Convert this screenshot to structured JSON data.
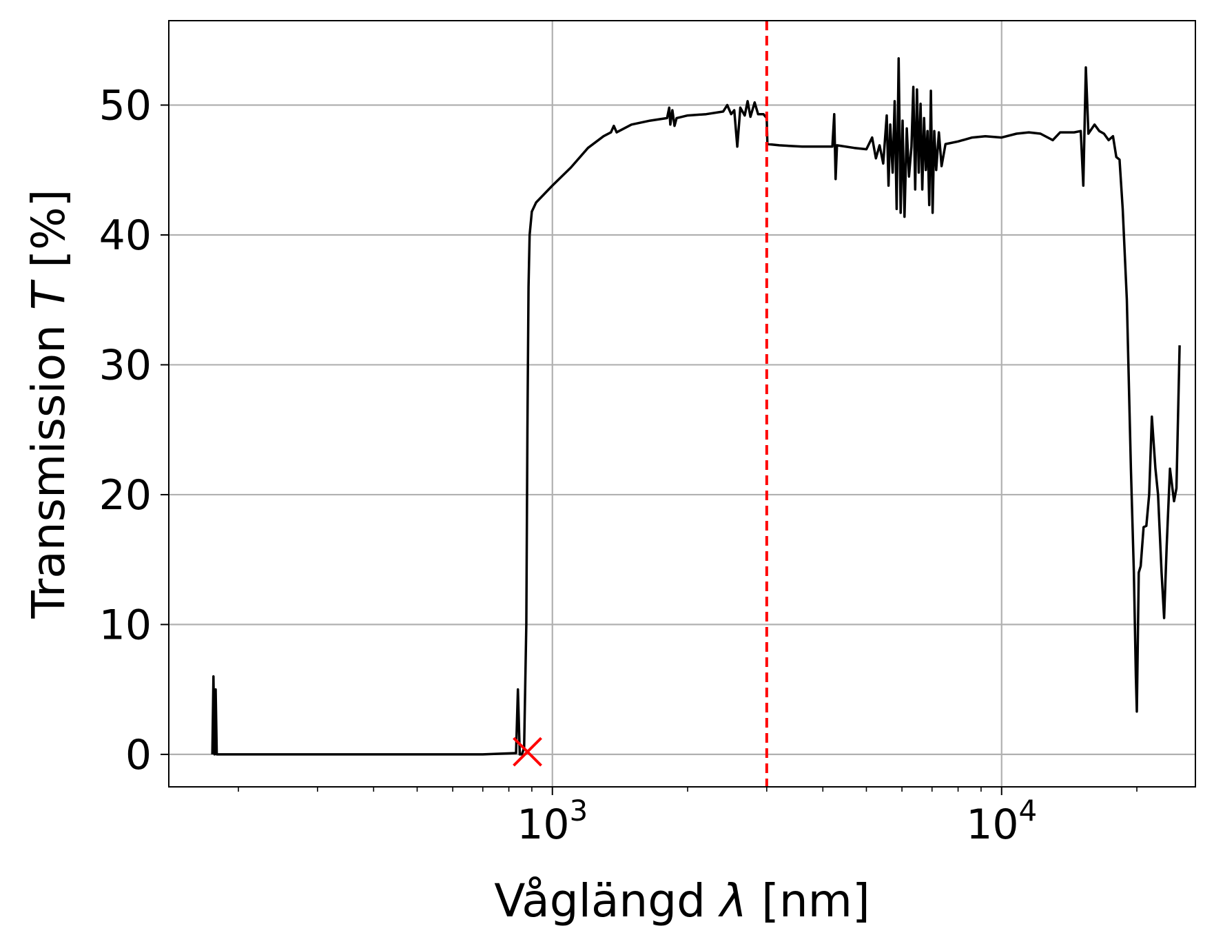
{
  "chart_data": {
    "type": "line",
    "xscale": "log",
    "xlim": [
      140,
      27000
    ],
    "ylim": [
      -2.5,
      56.5
    ],
    "grid": true,
    "xlabel": {
      "pre": "Våglängd ",
      "sym": "λ",
      "post": " [nm]"
    },
    "ylabel": {
      "pre": "Transmission ",
      "sym": "T",
      "post": " [%]"
    },
    "xticks": [
      {
        "value": 1000,
        "base": "10",
        "exp": "3"
      },
      {
        "value": 10000,
        "base": "10",
        "exp": "4"
      }
    ],
    "yticks": [
      0,
      10,
      20,
      30,
      40,
      50
    ],
    "colors": {
      "line": "#000000",
      "marker": "#ff0000",
      "vline": "#ff0000",
      "grid": "#b0b0b0"
    },
    "series": [
      {
        "color": "#000000",
        "points": [
          [
            175,
            0
          ],
          [
            176,
            6
          ],
          [
            177,
            0
          ],
          [
            178,
            5
          ],
          [
            179,
            0
          ],
          [
            300,
            0
          ],
          [
            500,
            0
          ],
          [
            700,
            0
          ],
          [
            830,
            0.1
          ],
          [
            838,
            5
          ],
          [
            846,
            0
          ],
          [
            855,
            0
          ],
          [
            865,
            0.5
          ],
          [
            875,
            10
          ],
          [
            880,
            25
          ],
          [
            885,
            36
          ],
          [
            890,
            40
          ],
          [
            900,
            41.8
          ],
          [
            920,
            42.5
          ],
          [
            1000,
            43.8
          ],
          [
            1100,
            45.2
          ],
          [
            1200,
            46.7
          ],
          [
            1300,
            47.6
          ],
          [
            1350,
            47.9
          ],
          [
            1370,
            48.4
          ],
          [
            1390,
            47.9
          ],
          [
            1500,
            48.5
          ],
          [
            1650,
            48.8
          ],
          [
            1800,
            49.0
          ],
          [
            1820,
            49.8
          ],
          [
            1830,
            48.5
          ],
          [
            1850,
            49.6
          ],
          [
            1870,
            48.4
          ],
          [
            1890,
            49.0
          ],
          [
            2000,
            49.2
          ],
          [
            2200,
            49.3
          ],
          [
            2400,
            49.5
          ],
          [
            2450,
            50.0
          ],
          [
            2500,
            49.3
          ],
          [
            2540,
            49.6
          ],
          [
            2580,
            46.8
          ],
          [
            2620,
            49.8
          ],
          [
            2680,
            49.2
          ],
          [
            2720,
            50.3
          ],
          [
            2760,
            49.1
          ],
          [
            2820,
            50.2
          ],
          [
            2870,
            49.3
          ],
          [
            2950,
            49.3
          ],
          [
            3000,
            49.0
          ],
          [
            3010,
            47.0
          ],
          [
            3200,
            46.9
          ],
          [
            3600,
            46.8
          ],
          [
            4000,
            46.8
          ],
          [
            4200,
            46.8
          ],
          [
            4240,
            49.3
          ],
          [
            4270,
            44.3
          ],
          [
            4300,
            46.9
          ],
          [
            4700,
            46.7
          ],
          [
            5000,
            46.6
          ],
          [
            5150,
            47.5
          ],
          [
            5250,
            45.9
          ],
          [
            5350,
            46.9
          ],
          [
            5450,
            45.5
          ],
          [
            5550,
            49.2
          ],
          [
            5600,
            43.8
          ],
          [
            5650,
            48.5
          ],
          [
            5720,
            44.8
          ],
          [
            5780,
            50.3
          ],
          [
            5840,
            42.0
          ],
          [
            5900,
            53.6
          ],
          [
            5960,
            41.7
          ],
          [
            6020,
            48.8
          ],
          [
            6080,
            41.4
          ],
          [
            6150,
            48.2
          ],
          [
            6220,
            44.5
          ],
          [
            6300,
            46.8
          ],
          [
            6360,
            51.4
          ],
          [
            6420,
            43.5
          ],
          [
            6480,
            51.2
          ],
          [
            6540,
            44.8
          ],
          [
            6600,
            50.1
          ],
          [
            6660,
            43.5
          ],
          [
            6720,
            49.0
          ],
          [
            6780,
            45.0
          ],
          [
            6840,
            48.0
          ],
          [
            6900,
            42.3
          ],
          [
            6960,
            51.1
          ],
          [
            7020,
            41.7
          ],
          [
            7080,
            48.0
          ],
          [
            7150,
            45.0
          ],
          [
            7250,
            47.9
          ],
          [
            7350,
            45.3
          ],
          [
            7500,
            47.0
          ],
          [
            8000,
            47.2
          ],
          [
            8600,
            47.5
          ],
          [
            9200,
            47.6
          ],
          [
            10000,
            47.5
          ],
          [
            10800,
            47.8
          ],
          [
            11500,
            47.9
          ],
          [
            12200,
            47.8
          ],
          [
            13000,
            47.3
          ],
          [
            13500,
            47.9
          ],
          [
            14500,
            47.9
          ],
          [
            15000,
            48.0
          ],
          [
            15200,
            43.8
          ],
          [
            15400,
            52.9
          ],
          [
            15600,
            47.8
          ],
          [
            16100,
            48.5
          ],
          [
            16500,
            48.0
          ],
          [
            16900,
            47.8
          ],
          [
            17300,
            47.3
          ],
          [
            17700,
            47.6
          ],
          [
            18000,
            46.0
          ],
          [
            18300,
            45.8
          ],
          [
            18600,
            42.0
          ],
          [
            19000,
            35.0
          ],
          [
            19400,
            22.0
          ],
          [
            19700,
            14.0
          ],
          [
            19900,
            6.0
          ],
          [
            20000,
            3.3
          ],
          [
            20200,
            14.0
          ],
          [
            20400,
            14.5
          ],
          [
            20700,
            17.5
          ],
          [
            21000,
            17.6
          ],
          [
            21300,
            20.0
          ],
          [
            21600,
            26.0
          ],
          [
            22000,
            22.0
          ],
          [
            22300,
            20.0
          ],
          [
            22700,
            14.0
          ],
          [
            23000,
            10.5
          ],
          [
            23300,
            16.0
          ],
          [
            23700,
            22.0
          ],
          [
            24200,
            19.5
          ],
          [
            24500,
            20.5
          ],
          [
            24900,
            31.5
          ]
        ]
      }
    ],
    "markers": [
      {
        "x": 880,
        "y": 0.2,
        "symbol": "x",
        "color": "#ff0000"
      }
    ],
    "vlines": [
      {
        "x": 3000,
        "style": "dashed",
        "color": "#ff0000"
      }
    ]
  }
}
